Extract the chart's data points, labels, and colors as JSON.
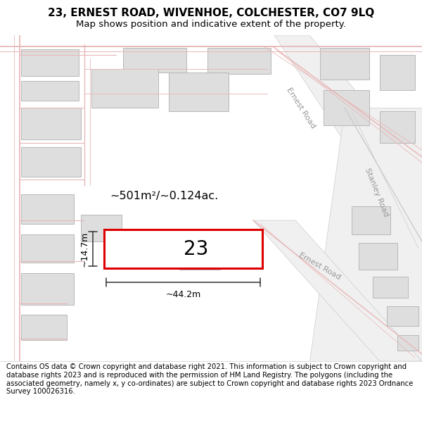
{
  "title_line1": "23, ERNEST ROAD, WIVENHOE, COLCHESTER, CO7 9LQ",
  "title_line2": "Map shows position and indicative extent of the property.",
  "footer_text": "Contains OS data © Crown copyright and database right 2021. This information is subject to Crown copyright and database rights 2023 and is reproduced with the permission of HM Land Registry. The polygons (including the associated geometry, namely x, y co-ordinates) are subject to Crown copyright and database rights 2023 Ordnance Survey 100026316.",
  "map_bg": "#f8f8f8",
  "road_fill": "#f0f0f0",
  "road_gray": "#cccccc",
  "road_red": "#e8b8b8",
  "building_fill": "#dedede",
  "building_edge": "#b8b8b8",
  "highlight_fill": "#ffffff",
  "highlight_edge": "#dd0000",
  "highlight_lw": 2.2,
  "road_label_color": "#999999",
  "dim_color": "#333333",
  "label_text": "23",
  "area_text": "~501m²/~0.124ac.",
  "width_text": "~44.2m",
  "height_text": "~14.7m",
  "title_fontsize": 11,
  "subtitle_fontsize": 9.5,
  "footer_fontsize": 7.2
}
